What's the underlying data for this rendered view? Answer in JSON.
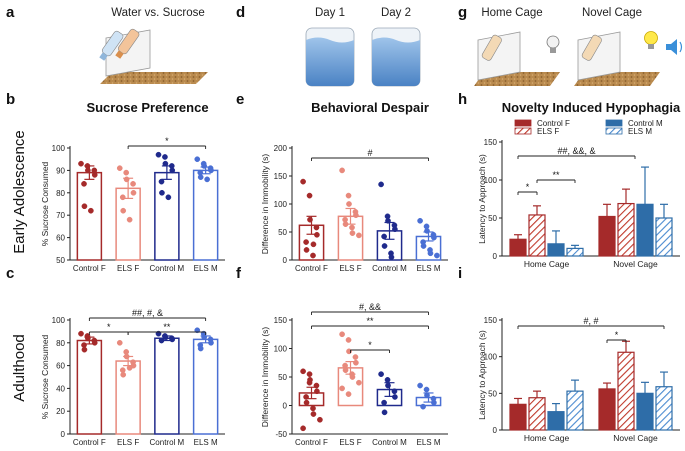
{
  "figure": {
    "row_labels": [
      "Early Adolescence",
      "Adulthood"
    ],
    "panel_letters": [
      "a",
      "b",
      "c",
      "d",
      "e",
      "f",
      "g",
      "h",
      "i"
    ]
  },
  "schematics": {
    "a_title": "Water vs. Sucrose",
    "d_day1": "Day 1",
    "d_day2": "Day 2",
    "g_home": "Home Cage",
    "g_novel": "Novel Cage"
  },
  "colors": {
    "control_f": "#a52a2a",
    "els_f": "#e8897c",
    "control_m": "#1f2a8c",
    "els_m": "#4a6fd4",
    "control_m_bar": "#2e6da8",
    "els_m_bar": "#6aa0d8"
  },
  "chart_data": [
    {
      "id": "b",
      "type": "bar",
      "title": "Sucrose Preference",
      "ylabel": "% Sucrose Consumed",
      "ylim": [
        50,
        100
      ],
      "yticks": [
        50,
        60,
        70,
        80,
        90,
        100
      ],
      "categories": [
        "Control F",
        "ELS F",
        "Control M",
        "ELS M"
      ],
      "values": [
        89,
        82,
        89,
        90
      ],
      "errors": [
        3,
        4.5,
        3,
        1.5
      ],
      "points": [
        [
          93,
          92,
          90,
          90,
          88,
          84,
          74,
          72
        ],
        [
          91,
          89,
          86,
          84,
          80,
          78,
          72,
          68
        ],
        [
          97,
          96,
          93,
          92,
          90,
          85,
          80,
          78
        ],
        [
          95,
          93,
          92,
          91,
          90,
          89,
          87,
          86
        ]
      ],
      "annotations": [
        {
          "text": "*",
          "from": 1,
          "to": 3
        }
      ]
    },
    {
      "id": "c",
      "type": "bar",
      "title": "",
      "ylabel": "% Sucrose Consumed",
      "ylim": [
        0,
        100
      ],
      "yticks": [
        0,
        20,
        40,
        60,
        80,
        100
      ],
      "categories": [
        "Control F",
        "ELS F",
        "Control M",
        "ELS M"
      ],
      "values": [
        82,
        64,
        84,
        83
      ],
      "errors": [
        3,
        4,
        2,
        3
      ],
      "points": [
        [
          88,
          86,
          84,
          82,
          80,
          78,
          74
        ],
        [
          80,
          72,
          68,
          63,
          60,
          56,
          52,
          58
        ],
        [
          88,
          86,
          85,
          84,
          83,
          82
        ],
        [
          91,
          88,
          85,
          83,
          80,
          78,
          75
        ]
      ],
      "annotations": [
        {
          "text": "*",
          "from": 0,
          "to": 1
        },
        {
          "text": "**",
          "from": 1,
          "to": 3
        },
        {
          "text": "##, #, &",
          "from": 0,
          "to": 3
        }
      ]
    },
    {
      "id": "e",
      "type": "bar",
      "title": "Behavioral Despair",
      "ylabel": "Difference in Immobility (s)",
      "ylim": [
        0,
        200
      ],
      "yticks": [
        0,
        50,
        100,
        150,
        200
      ],
      "categories": [
        "Control F",
        "ELS F",
        "Control M",
        "ELS M"
      ],
      "values": [
        62,
        78,
        52,
        42
      ],
      "errors": [
        16,
        14,
        15,
        8
      ],
      "points": [
        [
          140,
          115,
          72,
          58,
          45,
          32,
          18,
          8,
          28
        ],
        [
          160,
          115,
          100,
          86,
          80,
          72,
          64,
          58,
          48,
          44
        ],
        [
          135,
          78,
          70,
          62,
          55,
          42,
          25,
          12,
          5
        ],
        [
          70,
          60,
          52,
          45,
          40,
          32,
          25,
          18,
          12,
          8
        ]
      ],
      "annotations": [
        {
          "text": "#",
          "from": 0,
          "to": 3
        }
      ]
    },
    {
      "id": "f",
      "type": "bar",
      "title": "",
      "ylabel": "Difference in Immobility (s)",
      "ylim": [
        -50,
        150
      ],
      "yticks": [
        -50,
        0,
        50,
        100,
        150
      ],
      "categories": [
        "Control F",
        "ELS F",
        "Control M",
        "ELS M"
      ],
      "values": [
        22,
        66,
        28,
        14
      ],
      "errors": [
        10,
        11,
        12,
        8
      ],
      "points": [
        [
          60,
          55,
          45,
          35,
          25,
          15,
          5,
          -5,
          -15,
          -25,
          -40,
          40
        ],
        [
          125,
          115,
          95,
          85,
          75,
          70,
          62,
          55,
          50,
          40,
          30,
          20
        ],
        [
          55,
          45,
          35,
          25,
          15,
          5,
          -12
        ],
        [
          35,
          28,
          18,
          12,
          5,
          -2
        ]
      ],
      "annotations": [
        {
          "text": "*",
          "from": 1,
          "to": 2
        },
        {
          "text": "**",
          "from": 0,
          "to": 3
        },
        {
          "text": "#, &&",
          "from": 0,
          "to": 3
        }
      ]
    },
    {
      "id": "h",
      "type": "bar",
      "title": "Novelty Induced Hypophagia",
      "ylabel": "Latency to Approach (s)",
      "ylim": [
        0,
        150
      ],
      "yticks": [
        0,
        50,
        100,
        150
      ],
      "categories": [
        "Home Cage",
        "Novel Cage"
      ],
      "series": [
        {
          "name": "Control F",
          "values": [
            22,
            52
          ],
          "errors": [
            6,
            16
          ]
        },
        {
          "name": "ELS F",
          "values": [
            54,
            69
          ],
          "errors": [
            12,
            19
          ]
        },
        {
          "name": "Control M",
          "values": [
            16,
            68
          ],
          "errors": [
            17,
            49
          ]
        },
        {
          "name": "ELS M",
          "values": [
            10,
            50
          ],
          "errors": [
            4,
            18
          ]
        }
      ],
      "annotations": [
        {
          "text": "*",
          "from": 0,
          "to": 1
        },
        {
          "text": "**",
          "from": 1,
          "to": 3
        },
        {
          "text": "##, &&, &",
          "from": 0,
          "to": 3
        }
      ]
    },
    {
      "id": "i",
      "type": "bar",
      "title": "",
      "ylabel": "Latency to Approach (s)",
      "ylim": [
        0,
        150
      ],
      "yticks": [
        0,
        50,
        100,
        150
      ],
      "categories": [
        "Home Cage",
        "Novel Cage"
      ],
      "series": [
        {
          "name": "Control F",
          "values": [
            35,
            56
          ],
          "errors": [
            8,
            8
          ]
        },
        {
          "name": "ELS F",
          "values": [
            44,
            106
          ],
          "errors": [
            9,
            15
          ]
        },
        {
          "name": "Control M",
          "values": [
            25,
            50
          ],
          "errors": [
            11,
            15
          ]
        },
        {
          "name": "ELS M",
          "values": [
            53,
            59
          ],
          "errors": [
            15,
            20
          ]
        }
      ],
      "annotations": [
        {
          "text": "*",
          "from": 4,
          "to": 5
        },
        {
          "text": "#, #",
          "from": 0,
          "to": 7
        }
      ]
    }
  ]
}
